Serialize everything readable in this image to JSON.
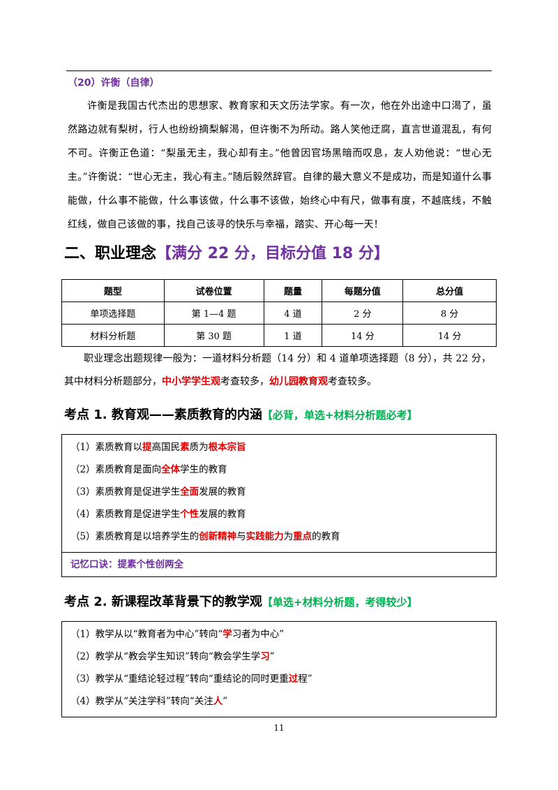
{
  "story": {
    "heading": "（20）许衡（自律）",
    "heading_color": "#7030a0",
    "body": "许衡是我国古代杰出的思想家、教育家和天文历法学家。有一次，他在外出途中口渴了，虽然路边就有梨树，行人也纷纷摘梨解渴，但许衡不为所动。路人笑他迂腐，直言世道混乱，有何不可。许衡正色道：“梨虽无主，我心却有主。”他曾因官场黑暗而叹息，友人劝他说：“世心无主。”许衡说：“世心无主，我心有主。”随后毅然辞官。自律的最大意义不是成功，而是知道什么事能做，什么事不能做，什么事该做，什么事不该做，始终心中有尺，做事有度，不越底线，不触红线，做自己该做的事，找自己该寻的快乐与幸福，踏实、开心每一天！"
  },
  "section": {
    "title": [
      "二、职业理念",
      {
        "text": "【满分 22 分，目标分值 18 分】",
        "color": "#7030a0"
      }
    ],
    "table": {
      "header": [
        "题型",
        "试卷位置",
        "题量",
        "每题分值",
        "总分值"
      ],
      "rows": [
        [
          "单项选择题",
          "第 1—4 题",
          "4 道",
          "2 分",
          "8 分"
        ],
        [
          "材料分析题",
          "第 30 题",
          "1 道",
          "14 分",
          "14 分"
        ]
      ]
    },
    "note": [
      "职业理念出题规律一般为：一道材料分析题（14 分）和 4 道单项选择题（8 分），共 22 分，其中材料分析题部分，",
      {
        "text": "中小学学生观",
        "color": "#e00000"
      },
      "考查较多，",
      {
        "text": "幼儿园教育观",
        "color": "#e00000"
      },
      "考查较多。"
    ]
  },
  "points": [
    {
      "title": [
        "考点 1. 教育观——素质教育的内涵",
        {
          "text": "【必背，单选+材料分析题必考】",
          "color": "#00b050"
        }
      ],
      "items": [
        [
          "（1）素质教育以",
          {
            "text": "提",
            "color": "#e00000"
          },
          "高国民",
          {
            "text": "素",
            "color": "#e00000"
          },
          "质为",
          {
            "text": "根本宗旨",
            "color": "#e00000"
          }
        ],
        [
          "（2）素质教育是面向",
          {
            "text": "全体",
            "color": "#e00000"
          },
          "学生的教育"
        ],
        [
          "（3）素质教育是促进学生",
          {
            "text": "全面",
            "color": "#e00000"
          },
          "发展的教育"
        ],
        [
          "（4）素质教育是促进学生",
          {
            "text": "个性",
            "color": "#e00000"
          },
          "发展的教育"
        ],
        [
          "（5）素质教育是以培养学生的",
          {
            "text": "创新精神",
            "color": "#e00000"
          },
          "与",
          {
            "text": "实践能力",
            "color": "#e00000"
          },
          "为",
          {
            "text": "重点",
            "color": "#e00000"
          },
          "的教育"
        ]
      ],
      "mnemonic": [
        {
          "text": "记忆口诀：提素个性创两全",
          "color": "#7030a0"
        }
      ]
    },
    {
      "title": [
        "考点 2. 新课程改革背景下的教学观",
        {
          "text": "【单选+材料分析题，考得较少】",
          "color": "#00b050"
        }
      ],
      "items": [
        [
          "（1）教学从以“教育者为中心”转向“",
          {
            "text": "学",
            "color": "#e00000"
          },
          "习者为中心”"
        ],
        [
          "（2）教学从“教会学生知识”转向“教会学生学",
          {
            "text": "习",
            "color": "#e00000"
          },
          "”"
        ],
        [
          "（3）教学从“重结论轻过程”转向“重结论的同时更重",
          {
            "text": "过",
            "color": "#e00000"
          },
          "程”"
        ],
        [
          "（4）教学从“关注学科”转向“关注",
          {
            "text": "人",
            "color": "#e00000"
          },
          "”"
        ]
      ]
    }
  ],
  "page_number": "11"
}
